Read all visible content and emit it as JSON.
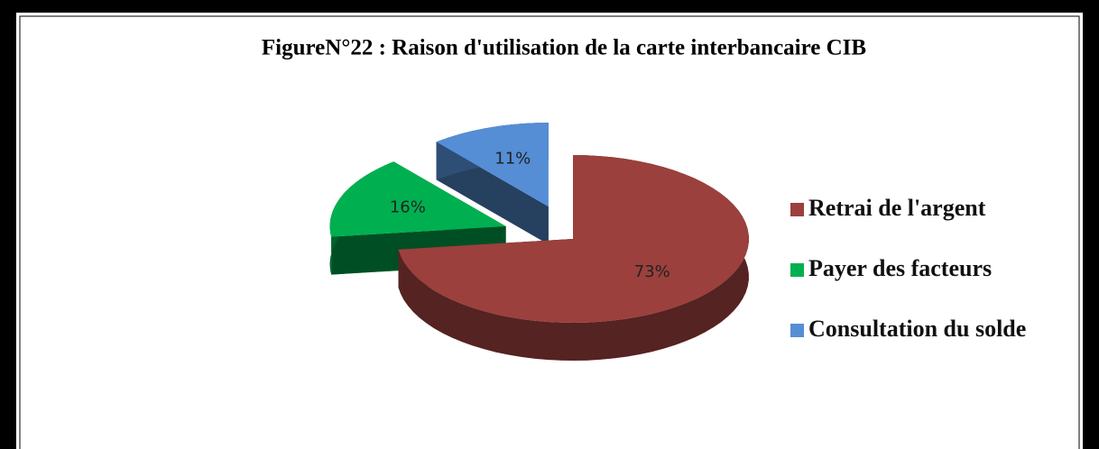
{
  "chart_data": {
    "type": "pie",
    "title": "FigureN°22 : Raison d'utilisation de la carte interbancaire CIB",
    "categories": [
      "Retrai de l'argent",
      "Payer des facteurs",
      "Consultation du solde"
    ],
    "values": [
      73,
      16,
      11
    ],
    "value_labels": [
      "73%",
      "16%",
      "11%"
    ],
    "colors": [
      "#9b403d",
      "#00b050",
      "#558ed5"
    ],
    "legend": "right"
  }
}
